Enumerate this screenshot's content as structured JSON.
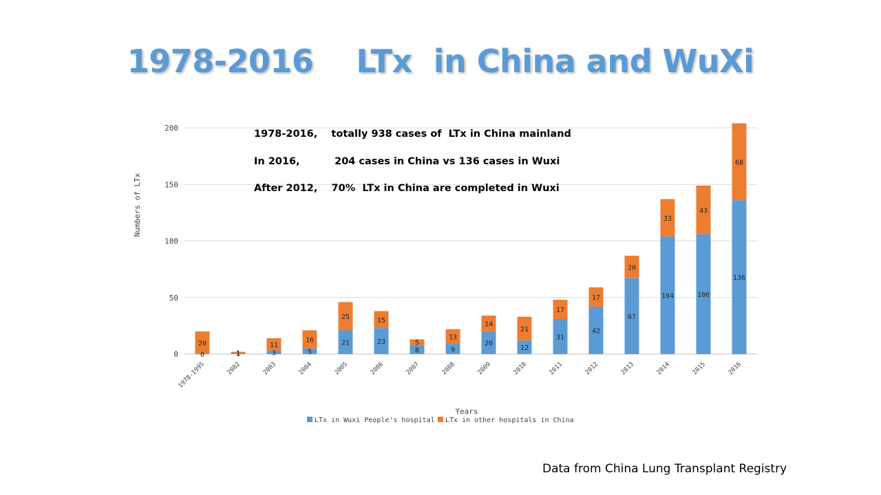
{
  "title": "1978-2016    LTx  in China and WuXi",
  "annotations": [
    "1978-2016,    totally 938 cases of  LTx in China mainland",
    "In 2016,          204 cases in China vs 136 cases in Wuxi",
    "After 2012,    70%  LTx in China are completed in Wuxi"
  ],
  "source": "Data from China Lung Transplant Registry",
  "colors": {
    "wuxi": "#5b9bd5",
    "other": "#ed7d31",
    "title": "#5b9bd5",
    "grid": "#d9d9d9"
  },
  "chart_data": {
    "type": "bar",
    "stacked": true,
    "categories": [
      "1978-1995",
      "2002",
      "2003",
      "2004",
      "2005",
      "2006",
      "2007",
      "2008",
      "2009",
      "2010",
      "2011",
      "2012",
      "2013",
      "2014",
      "2015",
      "2016"
    ],
    "series": [
      {
        "name": "LTx in Wuxi People's hospital",
        "color": "#5b9bd5",
        "values": [
          0,
          1,
          3,
          5,
          21,
          23,
          8,
          9,
          20,
          12,
          31,
          42,
          67,
          104,
          106,
          136
        ]
      },
      {
        "name": "LTx in other hospitals in China",
        "color": "#ed7d31",
        "values": [
          20,
          1,
          11,
          16,
          25,
          15,
          5,
          13,
          14,
          21,
          17,
          17,
          20,
          33,
          43,
          68
        ]
      }
    ],
    "xlabel": "Years",
    "ylabel": "Numbers of LTx",
    "ylim": [
      0,
      200
    ],
    "yticks": [
      0,
      50,
      100,
      150,
      200
    ],
    "grid": true,
    "legend_position": "bottom"
  }
}
